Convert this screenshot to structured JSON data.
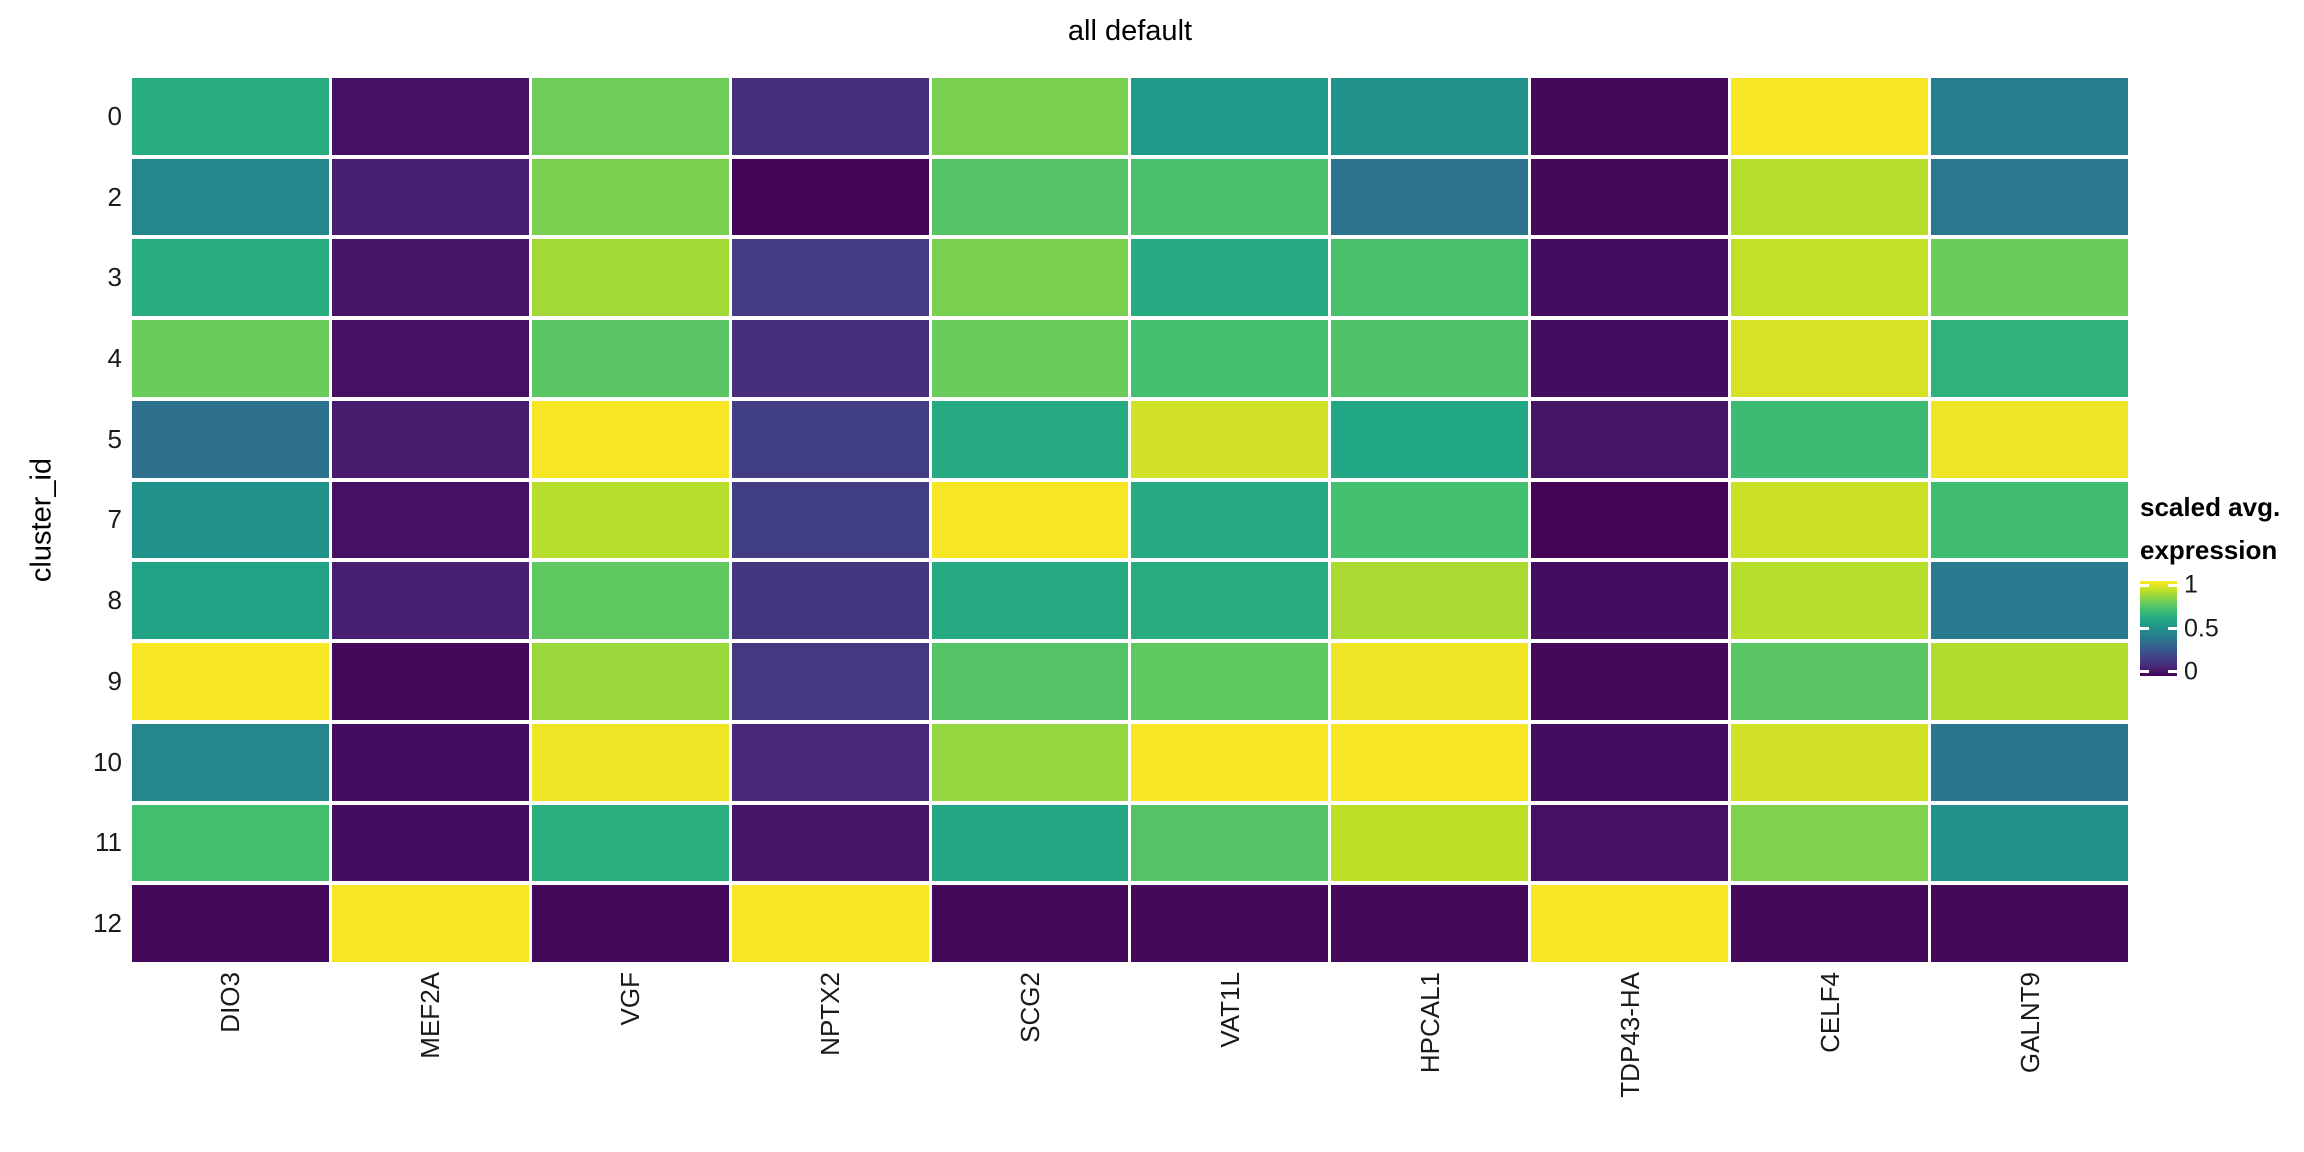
{
  "title": "all default",
  "y_axis": {
    "label": "cluster_id",
    "ticks": [
      "0",
      "2",
      "3",
      "4",
      "5",
      "7",
      "8",
      "9",
      "10",
      "11",
      "12"
    ]
  },
  "x_axis": {
    "ticks": [
      "DIO3",
      "MEF2A",
      "VGF",
      "NPTX2",
      "SCG2",
      "VAT1L",
      "HPCAL1",
      "TDP43-HA",
      "CELF4",
      "GALNT9"
    ]
  },
  "legend": {
    "title_line1": "scaled avg.",
    "title_line2": "expression",
    "tick_labels": [
      "1",
      "0.5",
      "0"
    ],
    "tick_values": [
      1,
      0.5,
      0
    ],
    "range": [
      -0.05,
      1.05
    ]
  },
  "colors": {
    "background": "#ffffff",
    "text": "#000000",
    "gap": "#ffffff",
    "viridis_anchors": [
      [
        0.0,
        "#440154"
      ],
      [
        0.1,
        "#482878"
      ],
      [
        0.2,
        "#414487"
      ],
      [
        0.3,
        "#355f8d"
      ],
      [
        0.4,
        "#2a788e"
      ],
      [
        0.5,
        "#21918c"
      ],
      [
        0.6,
        "#22a884"
      ],
      [
        0.7,
        "#44bf70"
      ],
      [
        0.8,
        "#7ad151"
      ],
      [
        0.9,
        "#bddf26"
      ],
      [
        1.0,
        "#fde725"
      ]
    ]
  },
  "chart_data": {
    "type": "heatmap",
    "title": "all default",
    "xlabel": "",
    "ylabel": "cluster_id",
    "legend_title": "scaled avg. expression",
    "colorscale": "viridis",
    "value_range": [
      0,
      1
    ],
    "rows": [
      "0",
      "2",
      "3",
      "4",
      "5",
      "7",
      "8",
      "9",
      "10",
      "11",
      "12"
    ],
    "columns": [
      "DIO3",
      "MEF2A",
      "VGF",
      "NPTX2",
      "SCG2",
      "VAT1L",
      "HPCAL1",
      "TDP43-HA",
      "CELF4",
      "GALNT9"
    ],
    "values": [
      [
        0.62,
        0.04,
        0.78,
        0.12,
        0.8,
        0.54,
        0.51,
        0.02,
        0.99,
        0.42
      ],
      [
        0.46,
        0.08,
        0.8,
        0.01,
        0.73,
        0.71,
        0.38,
        0.02,
        0.89,
        0.4
      ],
      [
        0.62,
        0.05,
        0.86,
        0.17,
        0.8,
        0.61,
        0.71,
        0.03,
        0.91,
        0.77
      ],
      [
        0.77,
        0.04,
        0.74,
        0.12,
        0.77,
        0.7,
        0.72,
        0.03,
        0.94,
        0.64
      ],
      [
        0.37,
        0.07,
        0.99,
        0.18,
        0.61,
        0.93,
        0.6,
        0.05,
        0.68,
        0.98
      ],
      [
        0.51,
        0.04,
        0.89,
        0.18,
        0.99,
        0.61,
        0.7,
        0.01,
        0.92,
        0.69
      ],
      [
        0.58,
        0.08,
        0.75,
        0.15,
        0.61,
        0.62,
        0.87,
        0.03,
        0.89,
        0.41
      ],
      [
        0.99,
        0.02,
        0.85,
        0.16,
        0.73,
        0.75,
        0.98,
        0.02,
        0.74,
        0.88
      ],
      [
        0.46,
        0.03,
        0.98,
        0.1,
        0.84,
        0.99,
        0.99,
        0.03,
        0.93,
        0.39
      ],
      [
        0.7,
        0.03,
        0.63,
        0.05,
        0.59,
        0.73,
        0.9,
        0.04,
        0.81,
        0.5
      ],
      [
        0.02,
        0.99,
        0.02,
        0.99,
        0.02,
        0.02,
        0.02,
        0.99,
        0.02,
        0.02
      ]
    ]
  }
}
